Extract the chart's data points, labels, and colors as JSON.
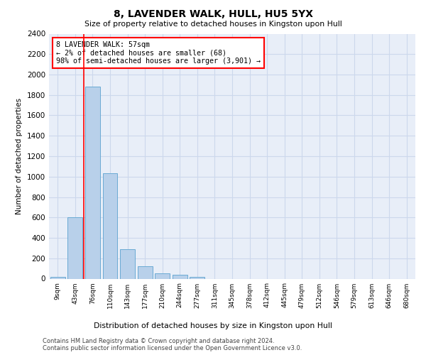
{
  "title": "8, LAVENDER WALK, HULL, HU5 5YX",
  "subtitle": "Size of property relative to detached houses in Kingston upon Hull",
  "xlabel": "Distribution of detached houses by size in Kingston upon Hull",
  "ylabel": "Number of detached properties",
  "footer_line1": "Contains HM Land Registry data © Crown copyright and database right 2024.",
  "footer_line2": "Contains public sector information licensed under the Open Government Licence v3.0.",
  "bar_labels": [
    "9sqm",
    "43sqm",
    "76sqm",
    "110sqm",
    "143sqm",
    "177sqm",
    "210sqm",
    "244sqm",
    "277sqm",
    "311sqm",
    "345sqm",
    "378sqm",
    "412sqm",
    "445sqm",
    "479sqm",
    "512sqm",
    "546sqm",
    "579sqm",
    "613sqm",
    "646sqm",
    "680sqm"
  ],
  "bar_values": [
    20,
    600,
    1880,
    1030,
    290,
    120,
    50,
    35,
    20,
    0,
    0,
    0,
    0,
    0,
    0,
    0,
    0,
    0,
    0,
    0,
    0
  ],
  "bar_color": "#b8d0ea",
  "bar_edge_color": "#6aaad4",
  "ylim": [
    0,
    2400
  ],
  "yticks": [
    0,
    200,
    400,
    600,
    800,
    1000,
    1200,
    1400,
    1600,
    1800,
    2000,
    2200,
    2400
  ],
  "annotation_title": "8 LAVENDER WALK: 57sqm",
  "annotation_line2": "← 2% of detached houses are smaller (68)",
  "annotation_line3": "98% of semi-detached houses are larger (3,901) →",
  "vline_x": 1.5,
  "grid_color": "#ccd8ec",
  "bg_color": "#e8eef8"
}
